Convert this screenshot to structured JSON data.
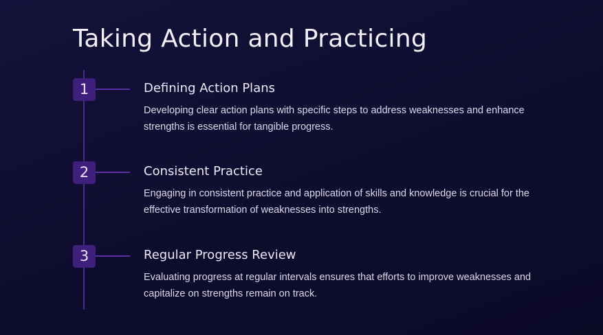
{
  "title": "Taking Action and Practicing",
  "steps": [
    {
      "number": "1",
      "title": "Defining Action Plans",
      "description": "Developing clear action plans with specific steps to address weaknesses and enhance strengths is essential for tangible progress."
    },
    {
      "number": "2",
      "title": "Consistent Practice",
      "description": "Engaging in consistent practice and application of skills and knowledge is crucial for the effective transformation of weaknesses into strengths."
    },
    {
      "number": "3",
      "title": "Regular Progress Review",
      "description": "Evaluating progress at regular intervals ensures that efforts to improve weaknesses and capitalize on strengths remain on track."
    }
  ],
  "colors": {
    "background": "#0e0c2e",
    "accent": "#3e1f7c",
    "line": "#4a2a8c"
  }
}
